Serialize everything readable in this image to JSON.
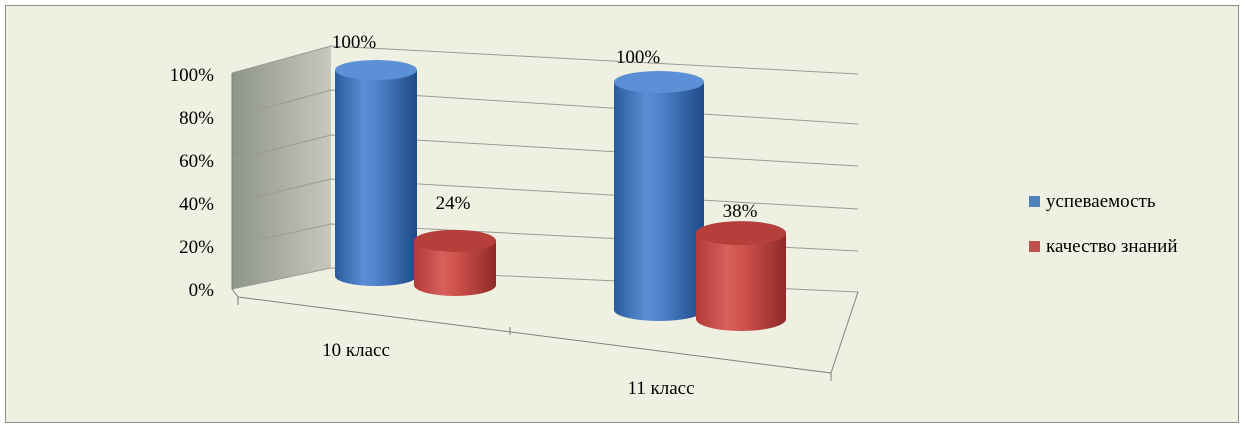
{
  "chart_data": {
    "type": "bar",
    "style": "3d-cylinder",
    "categories": [
      "10 класс",
      "11 класс"
    ],
    "series": [
      {
        "name": "успеваемость",
        "values": [
          100,
          100
        ],
        "labels": [
          "100%",
          "100%"
        ],
        "color": "#4f81bd"
      },
      {
        "name": "качество знаний",
        "values": [
          24,
          38
        ],
        "labels": [
          "24%",
          "38%"
        ],
        "color": "#c0504d"
      }
    ],
    "yticks": [
      "0%",
      "20%",
      "40%",
      "60%",
      "80%",
      "100%"
    ],
    "ylim": [
      0,
      100
    ],
    "grid": true,
    "legend": "right"
  }
}
